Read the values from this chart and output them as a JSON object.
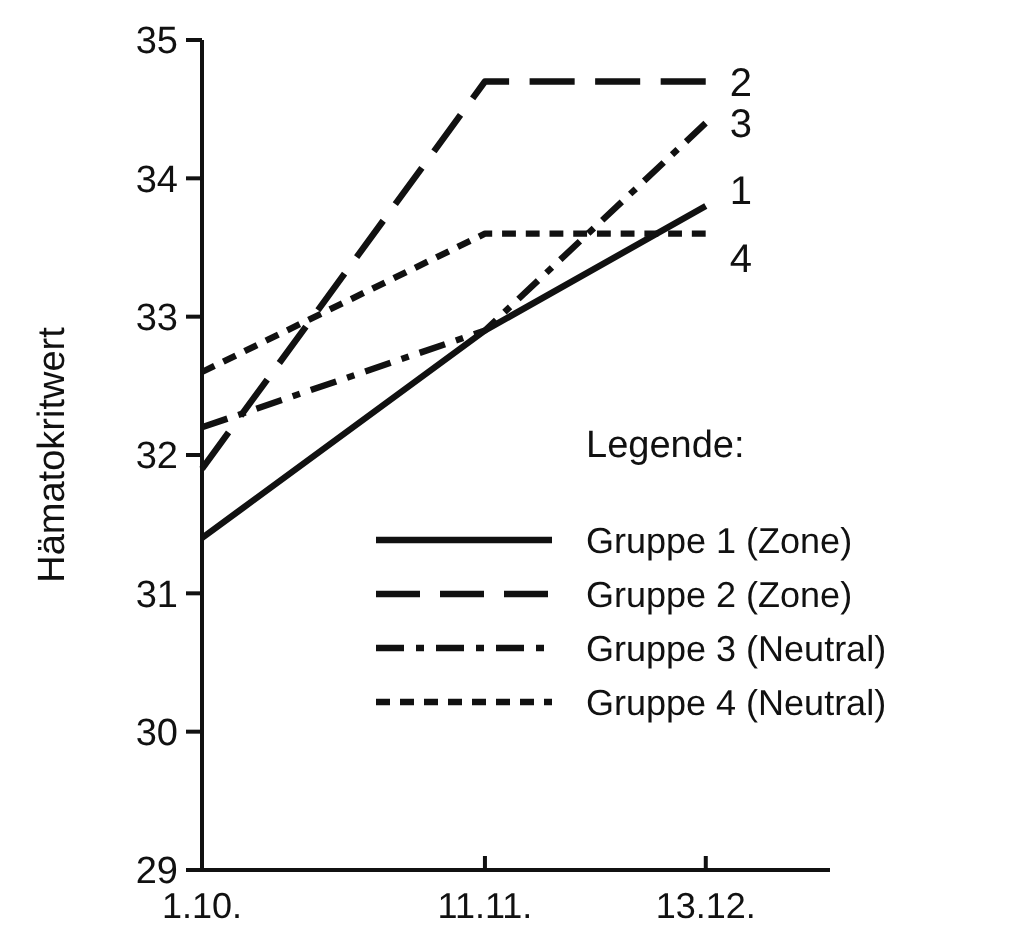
{
  "chart_data": {
    "type": "line",
    "ylabel": "Hämatokritwert",
    "legend_title": "Legende:",
    "x": [
      "--10-01",
      "--11-11",
      "--12-13"
    ],
    "xlim": [
      "--10-01",
      "--12-31"
    ],
    "xticks": [
      {
        "value": "--10-01",
        "label": "1.10."
      },
      {
        "value": "--11-11",
        "label": "11.11."
      },
      {
        "value": "--12-13",
        "label": "13.12."
      }
    ],
    "ylim": [
      29,
      35
    ],
    "yticks": [
      29,
      30,
      31,
      32,
      33,
      34,
      35
    ],
    "grid": false,
    "legend": "bottom right",
    "marker": "none",
    "series": [
      {
        "name": "Gruppe 1 (Zone)",
        "color": "#111111",
        "line_style": "solid",
        "values": [
          31.4,
          32.9,
          33.8
        ]
      },
      {
        "name": "Gruppe 2 (Zone)",
        "color": "#111111",
        "line_style": "dashed",
        "values": [
          31.9,
          34.7,
          34.7
        ]
      },
      {
        "name": "Gruppe 3 (Neutral)",
        "color": "#111111",
        "line_style": "dashdot",
        "values": [
          32.2,
          32.9,
          34.4
        ]
      },
      {
        "name": "Gruppe 4 (Neutral)",
        "color": "#111111",
        "line_style": "dotted",
        "values": [
          32.6,
          33.6,
          33.6
        ]
      }
    ],
    "annotations": [
      {
        "text": "1",
        "x": "--12-13",
        "y": 33.8
      },
      {
        "text": "2",
        "x": "--12-13",
        "y": 34.7
      },
      {
        "text": "3",
        "x": "--12-13",
        "y": 34.4
      },
      {
        "text": "4",
        "x": "--12-13",
        "y": 33.6
      }
    ]
  }
}
